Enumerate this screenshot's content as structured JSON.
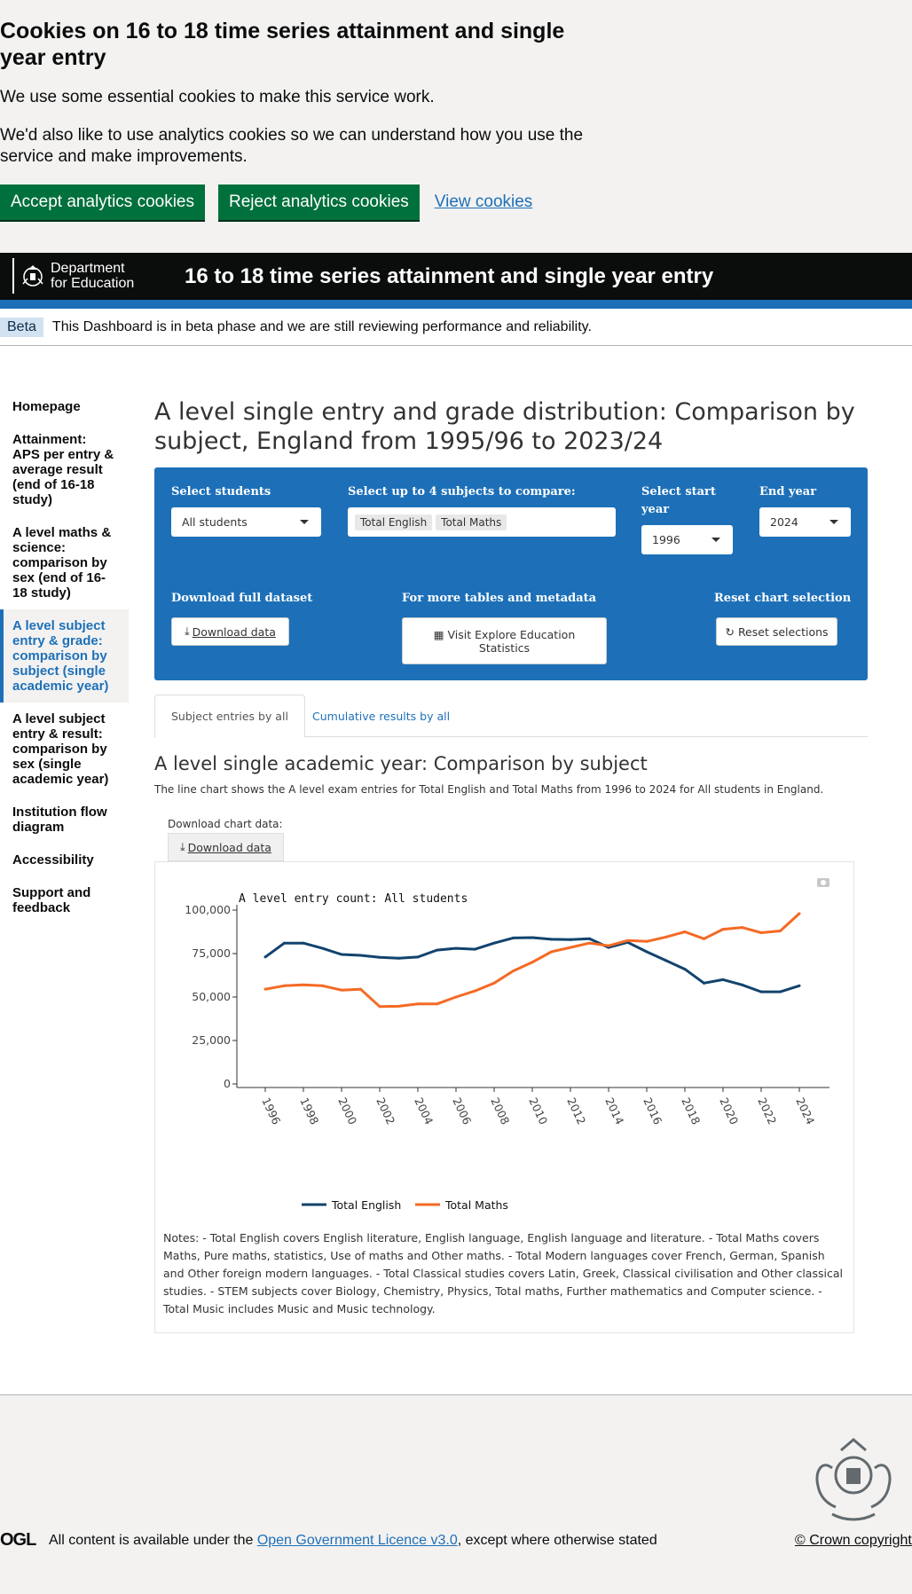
{
  "cookie": {
    "title": "Cookies on 16 to 18 time series attainment and single year entry",
    "p1": "We use some essential cookies to make this service work.",
    "p2": "We'd also like to use analytics cookies so we can understand how you use the service and make improvements.",
    "accept": "Accept analytics cookies",
    "reject": "Reject analytics cookies",
    "view": "View cookies"
  },
  "header": {
    "logo_line1": "Department",
    "logo_line2": "for Education",
    "title": "16 to 18 time series attainment and single year entry"
  },
  "beta": {
    "tag": "Beta",
    "text": "This Dashboard is in beta phase and we are still reviewing performance and reliability."
  },
  "sidebar": {
    "items": [
      {
        "label": "Homepage"
      },
      {
        "label": "Attainment: APS per entry & average result (end of 16-18 study)"
      },
      {
        "label": "A level maths & science: comparison by sex (end of 16-18 study)"
      },
      {
        "label": "A level subject entry & grade: comparison by subject (single academic year)"
      },
      {
        "label": "A level subject entry & result: comparison by sex (single academic year)"
      },
      {
        "label": "Institution flow diagram"
      },
      {
        "label": "Accessibility"
      },
      {
        "label": "Support and feedback"
      }
    ]
  },
  "main": {
    "title": "A level single entry and grade distribution: Comparison by subject, England from 1995/96 to 2023/24",
    "panel": {
      "students_label": "Select students",
      "students_value": "All students",
      "subjects_label": "Select up to 4 subjects to compare:",
      "subjects": [
        "Total English",
        "Total Maths"
      ],
      "start_label": "Select start year",
      "start_value": "1996",
      "end_label": "End year",
      "end_value": "2024",
      "download_label": "Download full dataset",
      "download_btn": "Download data",
      "more_label": "For more tables and metadata",
      "ees_btn": "Visit Explore Education Statistics",
      "reset_label": "Reset chart selection",
      "reset_btn": "Reset selections"
    },
    "tabs": [
      "Subject entries by all",
      "Cumulative results by all"
    ],
    "subtitle": "A level single academic year: Comparison by subject",
    "description": "The line chart shows the A level exam entries for Total English and Total Maths from 1996 to 2024 for All students in England.",
    "download_chart_label": "Download chart data:",
    "download_chart_btn": "Download data",
    "notes": "Notes: - Total English covers English literature, English language, English language and literature. - Total Maths covers Maths, Pure maths, statistics, Use of maths and Other maths. - Total Modern languages cover French, German, Spanish and Other foreign modern languages. - Total Classical studies covers Latin, Greek, Classical civilisation and Other classical studies. - STEM subjects cover Biology, Chemistry, Physics, Total maths, Further mathematics and Computer science. - Total Music includes Music and Music technology."
  },
  "chart_data": {
    "type": "line",
    "title": "A level entry count:  All students",
    "x": [
      1996,
      1997,
      1998,
      1999,
      2000,
      2001,
      2002,
      2003,
      2004,
      2005,
      2006,
      2007,
      2008,
      2009,
      2010,
      2011,
      2012,
      2013,
      2014,
      2015,
      2016,
      2017,
      2018,
      2019,
      2020,
      2021,
      2022,
      2023,
      2024
    ],
    "x_ticks": [
      "1996",
      "1998",
      "2000",
      "2002",
      "2004",
      "2006",
      "2008",
      "2010",
      "2012",
      "2014",
      "2016",
      "2018",
      "2020",
      "2022",
      "2024"
    ],
    "y_ticks": [
      "0",
      "25,000",
      "50,000",
      "75,000",
      "100,000"
    ],
    "ylim": [
      0,
      100000
    ],
    "series": [
      {
        "name": "Total English",
        "color": "#12436d",
        "values": [
          73000,
          81000,
          81000,
          78000,
          74500,
          74000,
          72800,
          72300,
          73000,
          77000,
          78000,
          77500,
          81000,
          84000,
          84200,
          83200,
          83000,
          83500,
          78500,
          81500,
          76000,
          71000,
          66000,
          58000,
          60000,
          57000,
          53000,
          53000,
          56500
        ]
      },
      {
        "name": "Total Maths",
        "color": "#f46a25",
        "values": [
          54500,
          56500,
          57000,
          56500,
          54000,
          54500,
          44500,
          44700,
          46000,
          46000,
          50000,
          53500,
          58000,
          65000,
          70000,
          76000,
          78500,
          81000,
          79500,
          82500,
          82000,
          84500,
          87500,
          83500,
          89000,
          90000,
          87000,
          88000,
          98000
        ]
      }
    ],
    "legend": "bottom",
    "grid": false
  },
  "footer": {
    "ogl": "OGL",
    "text_before": "All content is available under the ",
    "licence_link": "Open Government Licence v3.0",
    "text_after": ", except where otherwise stated",
    "copyright": "© Crown copyright"
  }
}
